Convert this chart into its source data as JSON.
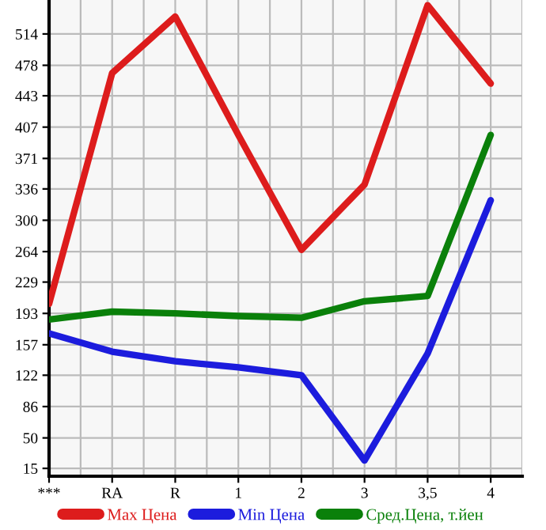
{
  "chart_data": {
    "type": "line",
    "categories": [
      "***",
      "RA",
      "R",
      "1",
      "2",
      "3",
      "3,5",
      "4"
    ],
    "series": [
      {
        "name": "Max Цена",
        "color": "#dd1c1c",
        "values": [
          204,
          469,
          534,
          398,
          266,
          341,
          547,
          457
        ]
      },
      {
        "name": "Min Цена",
        "color": "#1c1cdd",
        "values": [
          170,
          149,
          138,
          131,
          122,
          24,
          147,
          323
        ]
      },
      {
        "name": "Сред.Цена, т.йен",
        "color": "#0a800a",
        "values": [
          186,
          195,
          193,
          190,
          188,
          207,
          213,
          398
        ]
      }
    ],
    "ylim": [
      6,
      553
    ],
    "yticks": [
      15,
      50,
      86,
      122,
      157,
      193,
      229,
      264,
      300,
      336,
      371,
      407,
      443,
      478,
      514
    ],
    "grid": true,
    "legend": "bottom",
    "marker": "none",
    "line_style": "solid"
  }
}
